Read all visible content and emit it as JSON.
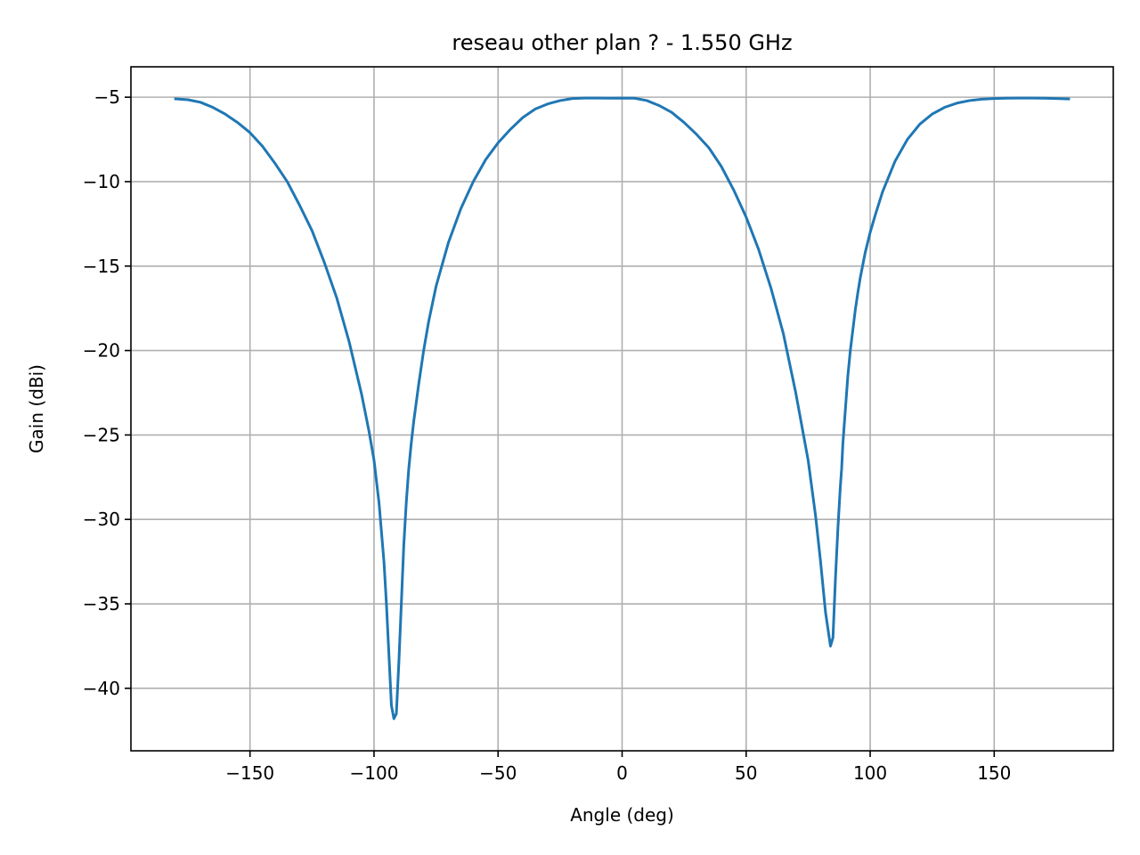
{
  "chart_data": {
    "type": "line",
    "title": "reseau other plan ? - 1.550 GHz",
    "xlabel": "Angle (deg)",
    "ylabel": "Gain (dBi)",
    "xlim": [
      -198,
      198
    ],
    "ylim": [
      -43.7,
      -3.2
    ],
    "xticks": [
      -150,
      -100,
      -50,
      0,
      50,
      100,
      150
    ],
    "yticks": [
      -5,
      -10,
      -15,
      -20,
      -25,
      -30,
      -35,
      -40
    ],
    "xtick_labels": [
      "−150",
      "−100",
      "−50",
      "0",
      "50",
      "100",
      "150"
    ],
    "ytick_labels": [
      "−5",
      "−10",
      "−15",
      "−20",
      "−25",
      "−30",
      "−35",
      "−40"
    ],
    "grid": true,
    "series": [
      {
        "color": "#1f77b4",
        "x": [
          -180,
          -175,
          -170,
          -165,
          -160,
          -155,
          -150,
          -145,
          -140,
          -135,
          -130,
          -125,
          -120,
          -115,
          -110,
          -105,
          -102,
          -100,
          -98,
          -96,
          -95,
          -94,
          -93,
          -92,
          -91,
          -90,
          -89,
          -88,
          -87,
          -86,
          -85,
          -84,
          -82,
          -80,
          -78,
          -75,
          -70,
          -65,
          -60,
          -55,
          -50,
          -45,
          -40,
          -35,
          -30,
          -25,
          -20,
          -15,
          -10,
          -5,
          0,
          5,
          10,
          15,
          20,
          25,
          30,
          35,
          40,
          45,
          50,
          55,
          60,
          65,
          70,
          75,
          78,
          80,
          82,
          84,
          85,
          86,
          87,
          88,
          88.5,
          89,
          89.5,
          90,
          91,
          92,
          93,
          94,
          95,
          96,
          98,
          100,
          102,
          105,
          110,
          115,
          120,
          125,
          130,
          135,
          140,
          145,
          150,
          155,
          160,
          165,
          170,
          175,
          180
        ],
        "y": [
          -5.1,
          -5.15,
          -5.3,
          -5.6,
          -6.0,
          -6.5,
          -7.1,
          -7.9,
          -8.9,
          -10.0,
          -11.4,
          -12.9,
          -14.8,
          -16.9,
          -19.5,
          -22.6,
          -24.8,
          -26.5,
          -29.0,
          -32.5,
          -35.0,
          -38.0,
          -41.0,
          -41.8,
          -41.5,
          -38.5,
          -35.0,
          -31.5,
          -29.0,
          -27.0,
          -25.5,
          -24.2,
          -22.0,
          -20.0,
          -18.3,
          -16.2,
          -13.6,
          -11.6,
          -10.0,
          -8.7,
          -7.7,
          -6.9,
          -6.2,
          -5.7,
          -5.4,
          -5.2,
          -5.08,
          -5.05,
          -5.05,
          -5.06,
          -5.05,
          -5.06,
          -5.2,
          -5.5,
          -5.9,
          -6.5,
          -7.2,
          -8.0,
          -9.1,
          -10.5,
          -12.1,
          -14.0,
          -16.3,
          -19.0,
          -22.5,
          -26.5,
          -29.8,
          -32.5,
          -35.5,
          -37.5,
          -37.0,
          -33.5,
          -30.5,
          -28.0,
          -27.0,
          -25.5,
          -24.5,
          -23.5,
          -21.5,
          -20.0,
          -18.8,
          -17.6,
          -16.6,
          -15.7,
          -14.2,
          -13.0,
          -12.0,
          -10.6,
          -8.8,
          -7.5,
          -6.6,
          -6.0,
          -5.6,
          -5.35,
          -5.2,
          -5.12,
          -5.08,
          -5.06,
          -5.05,
          -5.05,
          -5.06,
          -5.08,
          -5.1
        ]
      }
    ]
  }
}
